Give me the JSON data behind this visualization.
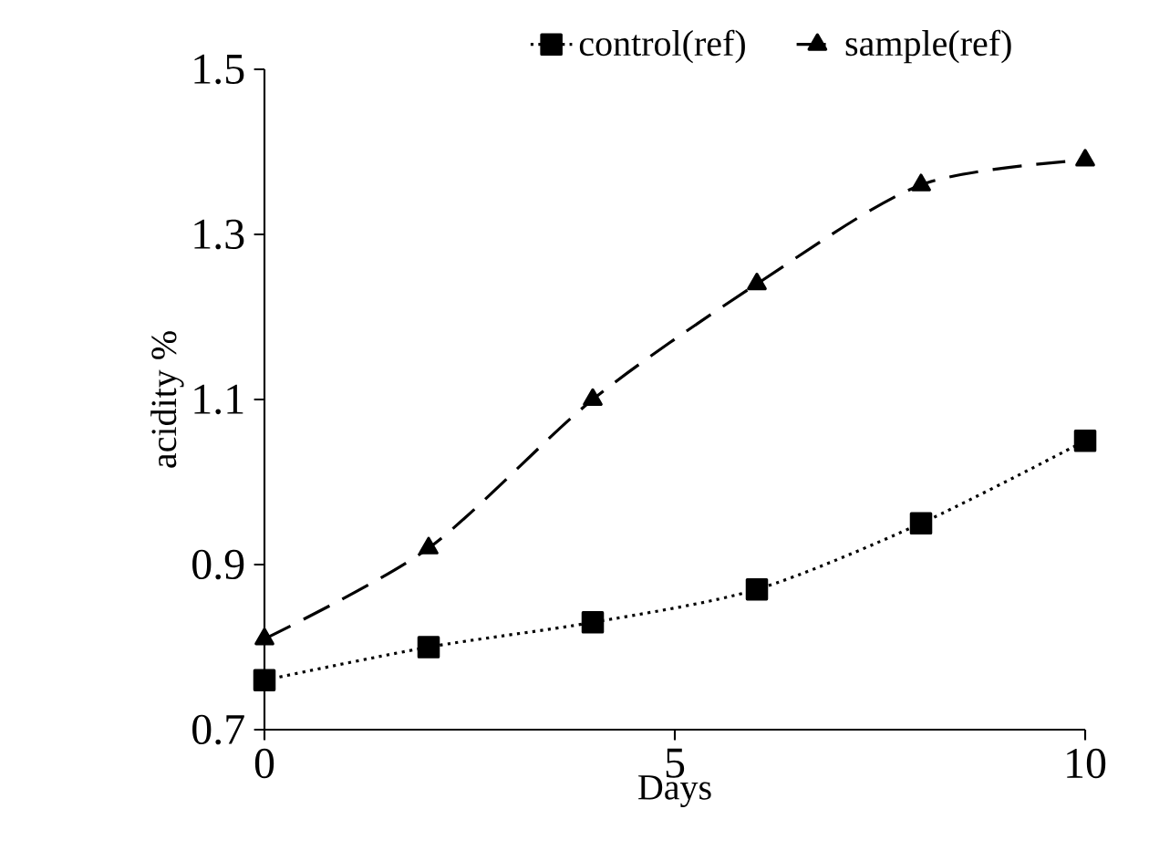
{
  "chart_data": {
    "type": "line",
    "xlabel": "Days",
    "ylabel": "acidity %",
    "x": [
      0,
      2,
      4,
      6,
      8,
      10
    ],
    "series": [
      {
        "name": "control(ref)",
        "color": "#000000",
        "values": [
          0.76,
          0.8,
          0.83,
          0.87,
          0.95,
          1.05
        ],
        "marker": "square",
        "line_style": "dotted"
      },
      {
        "name": "sample(ref)",
        "color": "#000000",
        "values": [
          0.81,
          0.92,
          1.1,
          1.24,
          1.36,
          1.39
        ],
        "marker": "triangle",
        "line_style": "dashed"
      }
    ],
    "xlim": [
      0,
      10
    ],
    "xticks": [
      0,
      5,
      10
    ],
    "ylim": [
      0.7,
      1.5
    ],
    "yticks": [
      0.7,
      0.9,
      1.1,
      1.3,
      1.5
    ],
    "grid": false,
    "legend": "top"
  }
}
